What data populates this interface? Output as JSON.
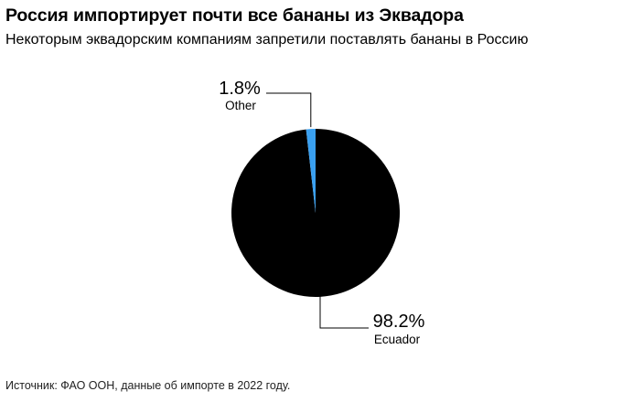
{
  "title": "Россия импортирует почти все бананы из Эквадора",
  "subtitle": "Некоторым эквадорским компаниям запретили поставлять бананы в Россию",
  "source": "Источник: ФАО ООН, данные об импорте в 2022 году.",
  "chart_data": {
    "type": "pie",
    "title": "Россия импортирует почти все бананы из Эквадора",
    "subtitle": "Некоторым эквадорским компаниям запретили поставлять бананы в Россию",
    "slices": [
      {
        "label": "Ecuador",
        "value": 98.2,
        "value_label": "98.2%",
        "color": "#000000"
      },
      {
        "label": "Other",
        "value": 1.8,
        "value_label": "1.8%",
        "color": "#3aa0f0"
      }
    ],
    "start": "12 o'clock, clockwise",
    "legend": "none (direct labels)"
  }
}
